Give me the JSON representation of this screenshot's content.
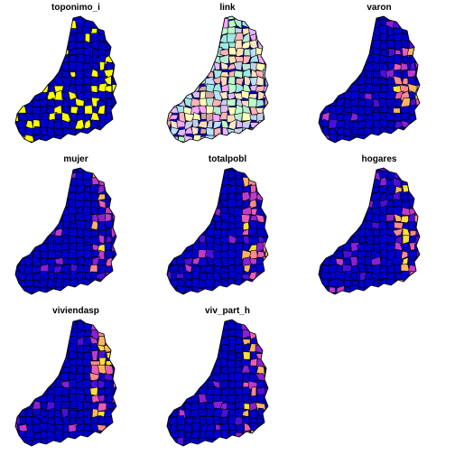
{
  "figure": {
    "panels": [
      {
        "title": "toponimo_i",
        "scheme": "binary"
      },
      {
        "title": "link",
        "scheme": "categorical"
      },
      {
        "title": "varon",
        "scheme": "sequential"
      },
      {
        "title": "mujer",
        "scheme": "sequential"
      },
      {
        "title": "totalpobl",
        "scheme": "sequential"
      },
      {
        "title": "hogares",
        "scheme": "sequential"
      },
      {
        "title": "viviendasp",
        "scheme": "sequential"
      },
      {
        "title": "viv_part_h",
        "scheme": "sequential"
      }
    ],
    "colors": {
      "base": "#0000cd",
      "binary_accent": "#ffff00",
      "sequential": [
        "#0000cd",
        "#4b0fd9",
        "#8a1fd6",
        "#c03acb",
        "#ea5db4",
        "#ff8a8a",
        "#ffb560",
        "#ffe033"
      ],
      "categorical": [
        "#ffb3ba",
        "#bae1ff",
        "#baffc9",
        "#ffffba",
        "#e3baff",
        "#ffdfba",
        "#b5ead7",
        "#c7ceea",
        "#f6a6ff",
        "#a0e7e5",
        "#fbe7c6",
        "#d4a5a5"
      ],
      "outline": "#000000"
    }
  }
}
